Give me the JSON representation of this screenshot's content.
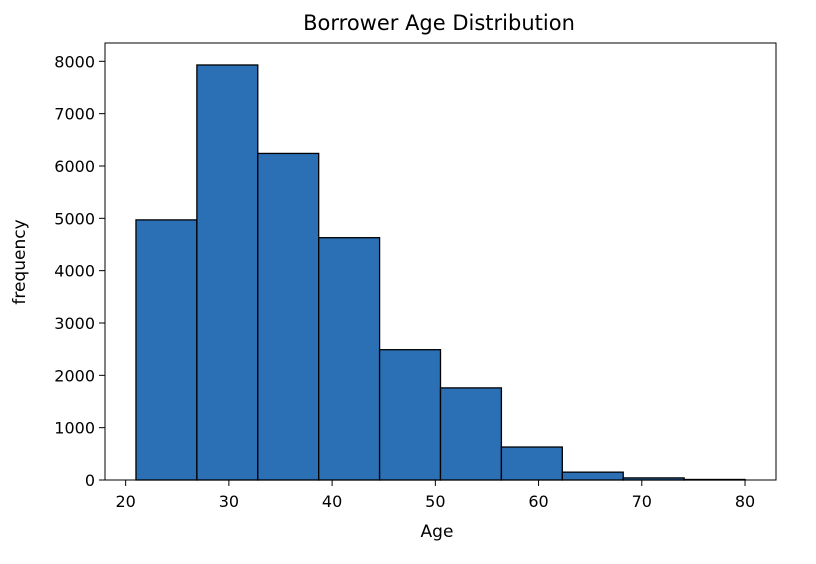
{
  "chart_data": {
    "type": "bar",
    "title": "Borrower Age Distribution",
    "xlabel": "Age",
    "ylabel": "frequency",
    "bins": [
      {
        "start": 21.0,
        "end": 26.9,
        "count": 4970
      },
      {
        "start": 26.9,
        "end": 32.8,
        "count": 7930
      },
      {
        "start": 32.8,
        "end": 38.7,
        "count": 6240
      },
      {
        "start": 38.7,
        "end": 44.6,
        "count": 4630
      },
      {
        "start": 44.6,
        "end": 50.5,
        "count": 2490
      },
      {
        "start": 50.5,
        "end": 56.4,
        "count": 1760
      },
      {
        "start": 56.4,
        "end": 62.3,
        "count": 630
      },
      {
        "start": 62.3,
        "end": 68.2,
        "count": 150
      },
      {
        "start": 68.2,
        "end": 74.1,
        "count": 40
      },
      {
        "start": 74.1,
        "end": 80.0,
        "count": 10
      }
    ],
    "xlim": [
      18.0,
      83.0
    ],
    "ylim": [
      0,
      8350
    ],
    "xticks": [
      20,
      30,
      40,
      50,
      60,
      70,
      80
    ],
    "yticks": [
      0,
      1000,
      2000,
      3000,
      4000,
      5000,
      6000,
      7000,
      8000
    ],
    "grid": false,
    "bar_color": "#2b6fb5",
    "edge_color": "#000000"
  }
}
